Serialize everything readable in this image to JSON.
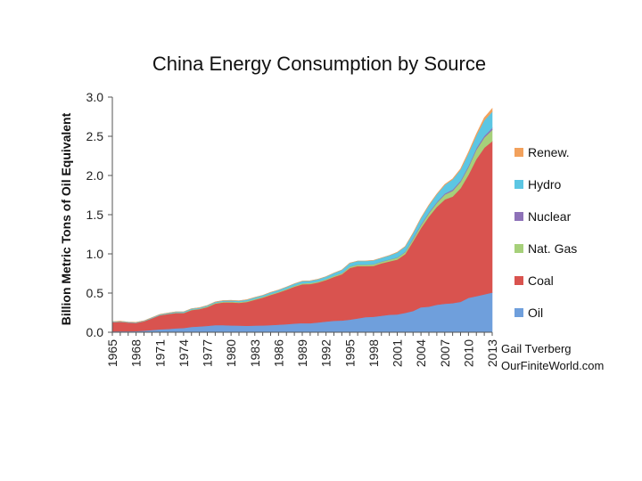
{
  "chart_data": {
    "type": "area",
    "stacked": true,
    "title": "China Energy Consumption by Source",
    "xlabel": "",
    "ylabel": "Billion Metric Tons of Oil Equivalent",
    "ylim": [
      0,
      3.0
    ],
    "yticks": [
      "0.0",
      "0.5",
      "1.0",
      "1.5",
      "2.0",
      "2.5",
      "3.0"
    ],
    "xticks": [
      "1965",
      "1968",
      "1971",
      "1974",
      "1977",
      "1980",
      "1983",
      "1986",
      "1989",
      "1992",
      "1995",
      "1998",
      "2001",
      "2004",
      "2007",
      "2010",
      "2013"
    ],
    "grid": false,
    "legend_position": "right",
    "x": [
      1965,
      1966,
      1967,
      1968,
      1969,
      1970,
      1971,
      1972,
      1973,
      1974,
      1975,
      1976,
      1977,
      1978,
      1979,
      1980,
      1981,
      1982,
      1983,
      1984,
      1985,
      1986,
      1987,
      1988,
      1989,
      1990,
      1991,
      1992,
      1993,
      1994,
      1995,
      1996,
      1997,
      1998,
      1999,
      2000,
      2001,
      2002,
      2003,
      2004,
      2005,
      2006,
      2007,
      2008,
      2009,
      2010,
      2011,
      2012,
      2013
    ],
    "series": [
      {
        "name": "Oil",
        "color": "#6f9fdc",
        "values": [
          0.011,
          0.014,
          0.014,
          0.015,
          0.02,
          0.028,
          0.037,
          0.042,
          0.05,
          0.055,
          0.068,
          0.075,
          0.082,
          0.091,
          0.091,
          0.088,
          0.085,
          0.083,
          0.085,
          0.087,
          0.091,
          0.097,
          0.103,
          0.111,
          0.117,
          0.116,
          0.125,
          0.136,
          0.147,
          0.15,
          0.161,
          0.176,
          0.194,
          0.198,
          0.21,
          0.224,
          0.227,
          0.248,
          0.272,
          0.319,
          0.327,
          0.351,
          0.364,
          0.372,
          0.389,
          0.44,
          0.461,
          0.484,
          0.507
        ]
      },
      {
        "name": "Coal",
        "color": "#d9534f",
        "values": [
          0.117,
          0.12,
          0.11,
          0.105,
          0.12,
          0.15,
          0.18,
          0.19,
          0.195,
          0.19,
          0.215,
          0.22,
          0.24,
          0.275,
          0.29,
          0.295,
          0.29,
          0.305,
          0.33,
          0.355,
          0.385,
          0.41,
          0.44,
          0.47,
          0.495,
          0.5,
          0.51,
          0.53,
          0.56,
          0.59,
          0.66,
          0.67,
          0.65,
          0.65,
          0.67,
          0.68,
          0.7,
          0.75,
          0.89,
          1.01,
          1.15,
          1.25,
          1.33,
          1.36,
          1.45,
          1.57,
          1.75,
          1.87,
          1.93
        ]
      },
      {
        "name": "Nat. Gas",
        "color": "#a6d07a",
        "values": [
          0.002,
          0.002,
          0.002,
          0.002,
          0.002,
          0.003,
          0.003,
          0.004,
          0.005,
          0.006,
          0.007,
          0.008,
          0.009,
          0.01,
          0.011,
          0.011,
          0.011,
          0.011,
          0.011,
          0.011,
          0.012,
          0.012,
          0.012,
          0.013,
          0.013,
          0.013,
          0.013,
          0.014,
          0.015,
          0.015,
          0.016,
          0.017,
          0.019,
          0.019,
          0.02,
          0.022,
          0.025,
          0.026,
          0.03,
          0.036,
          0.042,
          0.05,
          0.063,
          0.073,
          0.08,
          0.097,
          0.12,
          0.13,
          0.146
        ]
      },
      {
        "name": "Nuclear",
        "color": "#8e72b8",
        "values": [
          0,
          0,
          0,
          0,
          0,
          0,
          0,
          0,
          0,
          0,
          0,
          0,
          0,
          0,
          0,
          0,
          0,
          0,
          0,
          0,
          0,
          0,
          0,
          0,
          0,
          0,
          0,
          0,
          0,
          0.003,
          0.003,
          0.003,
          0.003,
          0.003,
          0.003,
          0.004,
          0.004,
          0.005,
          0.01,
          0.011,
          0.012,
          0.012,
          0.014,
          0.015,
          0.016,
          0.017,
          0.02,
          0.022,
          0.025
        ]
      },
      {
        "name": "Hydro",
        "color": "#5cc6e3",
        "values": [
          0.005,
          0.005,
          0.005,
          0.005,
          0.005,
          0.007,
          0.008,
          0.009,
          0.01,
          0.01,
          0.011,
          0.011,
          0.011,
          0.011,
          0.012,
          0.013,
          0.015,
          0.017,
          0.019,
          0.019,
          0.021,
          0.021,
          0.023,
          0.025,
          0.027,
          0.028,
          0.029,
          0.03,
          0.034,
          0.038,
          0.043,
          0.043,
          0.044,
          0.047,
          0.046,
          0.05,
          0.063,
          0.065,
          0.064,
          0.08,
          0.09,
          0.098,
          0.11,
          0.13,
          0.14,
          0.16,
          0.16,
          0.2,
          0.206
        ]
      },
      {
        "name": "Renew.",
        "color": "#f2a15c",
        "values": [
          0,
          0,
          0,
          0,
          0,
          0,
          0,
          0,
          0,
          0,
          0,
          0,
          0,
          0,
          0,
          0,
          0,
          0,
          0,
          0,
          0,
          0,
          0,
          0,
          0,
          0,
          0,
          0,
          0,
          0,
          0,
          0,
          0,
          0,
          0,
          0,
          0.001,
          0.001,
          0.002,
          0.002,
          0.003,
          0.004,
          0.005,
          0.007,
          0.01,
          0.015,
          0.02,
          0.03,
          0.04
        ]
      }
    ]
  },
  "credit": {
    "line1": "Gail Tverberg",
    "line2": "OurFiniteWorld.com"
  }
}
